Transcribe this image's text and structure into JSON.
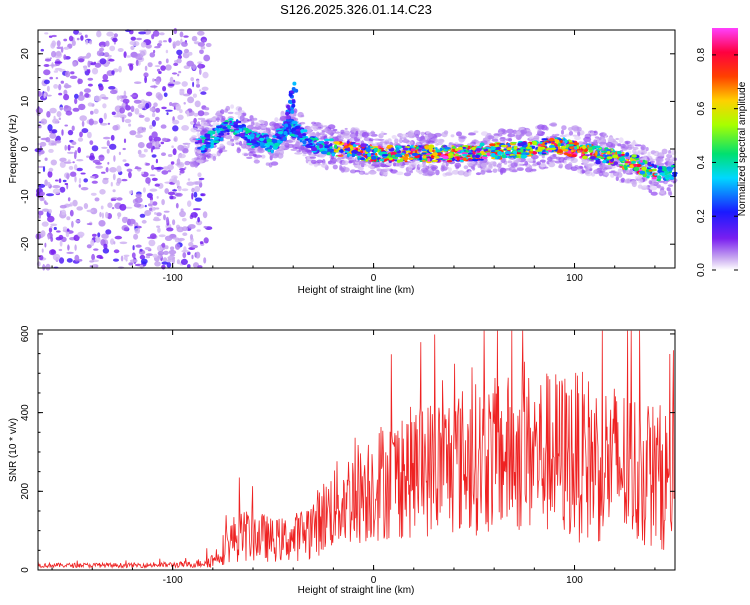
{
  "chart_data": [
    {
      "type": "heatmap",
      "title": "S126.2025.326.01.14.C23",
      "xlabel": "Height of straight line (km)",
      "ylabel": "Frequency (Hz)",
      "xlim": [
        -167,
        150
      ],
      "ylim": [
        -25,
        25
      ],
      "xticks": [
        -100,
        0,
        100
      ],
      "yticks": [
        -20,
        -10,
        0,
        10,
        20
      ],
      "colorbar": {
        "label": "Normalized spectral amplitude",
        "range": [
          0,
          0.9
        ],
        "ticks": [
          0.0,
          0.2,
          0.4,
          0.6,
          0.8
        ]
      },
      "ridge": [
        [
          -85,
          1
        ],
        [
          -70,
          5
        ],
        [
          -60,
          2
        ],
        [
          -50,
          1
        ],
        [
          -42,
          5
        ],
        [
          -30,
          1
        ],
        [
          0,
          -1
        ],
        [
          20,
          -1
        ],
        [
          40,
          -1
        ],
        [
          60,
          -0.5
        ],
        [
          80,
          0
        ],
        [
          90,
          1
        ],
        [
          100,
          0
        ],
        [
          110,
          -1
        ],
        [
          120,
          -2
        ],
        [
          130,
          -3
        ],
        [
          140,
          -5
        ],
        [
          150,
          -5
        ]
      ]
    },
    {
      "type": "line",
      "xlabel": "Height of straight line (km)",
      "ylabel": "SNR (10 * v/v)",
      "xlim": [
        -167,
        150
      ],
      "ylim": [
        0,
        610
      ],
      "xticks": [
        -100,
        0,
        100
      ],
      "yticks": [
        0,
        200,
        400,
        600
      ],
      "series": [
        {
          "name": "SNR",
          "color": "#ee2222",
          "envelope_x": [
            -167,
            -120,
            -90,
            -80,
            -70,
            -60,
            -50,
            -40,
            -30,
            -20,
            -10,
            0,
            20,
            40,
            60,
            80,
            100,
            120,
            140,
            150
          ],
          "envelope_y": [
            12,
            12,
            14,
            25,
            80,
            90,
            75,
            80,
            110,
            160,
            190,
            220,
            250,
            275,
            290,
            300,
            290,
            270,
            240,
            230
          ],
          "spread_y": [
            6,
            6,
            8,
            20,
            60,
            70,
            55,
            60,
            80,
            110,
            130,
            150,
            170,
            190,
            200,
            210,
            220,
            210,
            190,
            180
          ]
        }
      ]
    }
  ]
}
